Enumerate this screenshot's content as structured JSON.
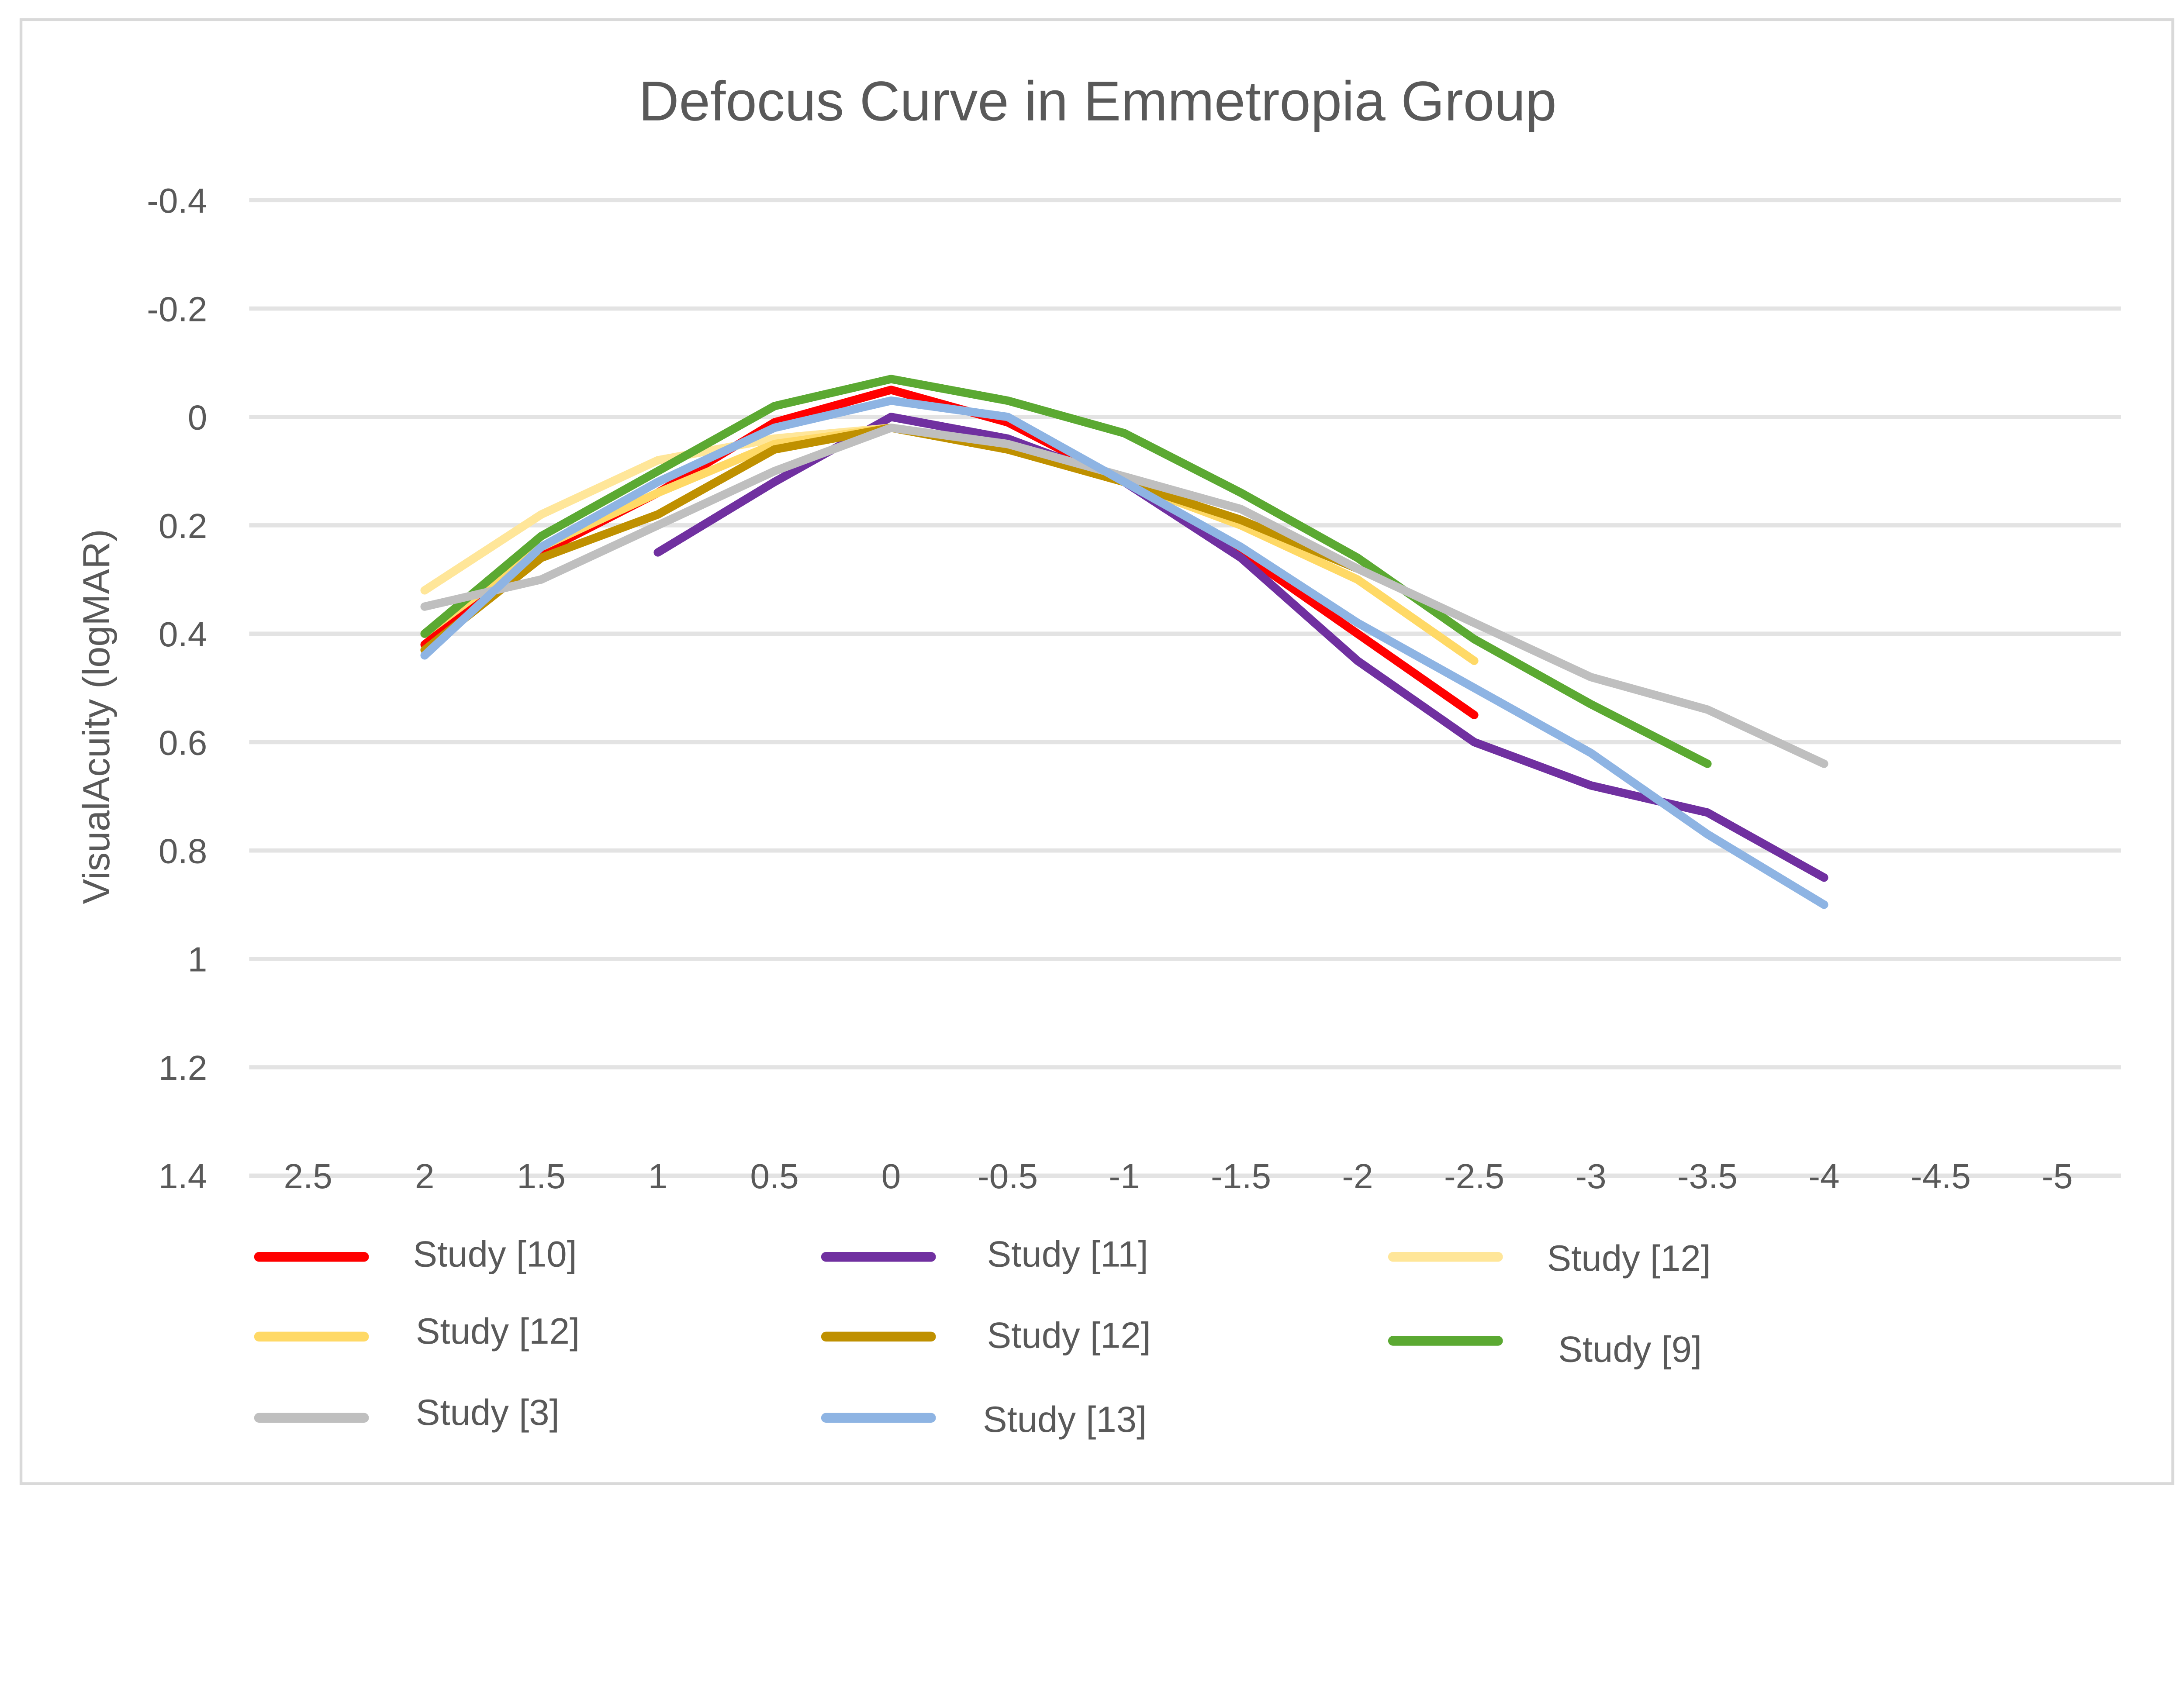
{
  "chart_data": {
    "type": "line",
    "title": "Defocus Curve in Emmetropia Group",
    "xlabel": "",
    "ylabel": "VisualAcuity (logMAR)",
    "x_categories": [
      "2.5",
      "2",
      "1.5",
      "1",
      "0.5",
      "0",
      "-0.5",
      "-1",
      "-1.5",
      "-2",
      "-2.5",
      "-3",
      "-3.5",
      "-4",
      "-4.5",
      "-5"
    ],
    "x_values": [
      2.5,
      2,
      1.5,
      1,
      0.5,
      0,
      -0.5,
      -1,
      -1.5,
      -2,
      -2.5,
      -3,
      -3.5,
      -4,
      -4.5,
      -5
    ],
    "y_ticks": [
      "-0.4",
      "-0.2",
      "0",
      "0.2",
      "0.4",
      "0.6",
      "0.8",
      "1",
      "1.2",
      "1.4"
    ],
    "y_tick_values": [
      -0.4,
      -0.2,
      0,
      0.2,
      0.4,
      0.6,
      0.8,
      1,
      1.2,
      1.4
    ],
    "ylim": [
      -0.4,
      1.4
    ],
    "y_inverted": true,
    "grid": true,
    "legend_position": "bottom",
    "series": [
      {
        "name": "Study [10]",
        "color": "#FF0000",
        "x": [
          2,
          1.5,
          1,
          0.5,
          0,
          -0.5,
          -1,
          -1.5,
          -2,
          -2.5
        ],
        "values": [
          0.42,
          0.25,
          0.14,
          0.01,
          -0.05,
          0.01,
          0.12,
          0.25,
          0.4,
          0.55
        ]
      },
      {
        "name": "Study [11]",
        "color": "#7030A0",
        "x": [
          1,
          0.5,
          0,
          -0.5,
          -1,
          -1.5,
          -2,
          -2.5,
          -3,
          -3.5,
          -4
        ],
        "values": [
          0.25,
          0.12,
          0.0,
          0.04,
          0.12,
          0.26,
          0.45,
          0.6,
          0.68,
          0.73,
          0.85
        ]
      },
      {
        "name": "Study [12]",
        "color": "#FFE699",
        "x": [
          2,
          1.5,
          1,
          0.5,
          0
        ],
        "values": [
          0.32,
          0.18,
          0.08,
          0.04,
          0.02
        ]
      },
      {
        "name": "Study [12]",
        "color": "#FFD966",
        "x": [
          2,
          1.5,
          1,
          0.5,
          0,
          -0.5,
          -1,
          -1.5,
          -2,
          -2.5
        ],
        "values": [
          0.4,
          0.24,
          0.14,
          0.05,
          0.02,
          0.06,
          0.12,
          0.2,
          0.3,
          0.45
        ]
      },
      {
        "name": "Study [12]",
        "color": "#BF9000",
        "x": [
          2,
          1.5,
          1,
          0.5,
          0,
          -0.5,
          -1,
          -1.5,
          -2
        ],
        "values": [
          0.43,
          0.26,
          0.18,
          0.06,
          0.02,
          0.06,
          0.12,
          0.19,
          0.28
        ]
      },
      {
        "name": "Study [9]",
        "color": "#5BA932",
        "x": [
          2,
          1.5,
          1,
          0.5,
          0,
          -0.5,
          -1,
          -1.5,
          -2,
          -2.5,
          -3,
          -3.5
        ],
        "values": [
          0.4,
          0.22,
          0.1,
          -0.02,
          -0.07,
          -0.03,
          0.03,
          0.14,
          0.26,
          0.41,
          0.53,
          0.64
        ]
      },
      {
        "name": "Study [3]",
        "color": "#BFBFBF",
        "x": [
          2,
          1.5,
          1,
          0.5,
          0,
          -0.5,
          -1,
          -1.5,
          -2,
          -2.5,
          -3,
          -3.5,
          -4
        ],
        "values": [
          0.35,
          0.3,
          0.2,
          0.1,
          0.02,
          0.05,
          0.11,
          0.17,
          0.28,
          0.38,
          0.48,
          0.54,
          0.64
        ]
      },
      {
        "name": "Study [13]",
        "color": "#8EB4E3",
        "x": [
          2,
          1.5,
          1,
          0.5,
          0,
          -0.5,
          -1,
          -1.5,
          -2,
          -2.5,
          -3,
          -3.5,
          -4
        ],
        "values": [
          0.44,
          0.24,
          0.12,
          0.02,
          -0.03,
          0.0,
          0.12,
          0.24,
          0.38,
          0.5,
          0.62,
          0.77,
          0.9
        ]
      }
    ]
  }
}
